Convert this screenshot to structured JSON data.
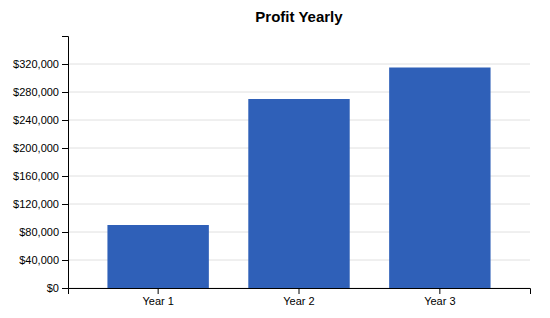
{
  "chart_data": {
    "type": "bar",
    "title": "Profit Yearly",
    "categories": [
      "Year 1",
      "Year 2",
      "Year 3"
    ],
    "values": [
      90000,
      270000,
      315000
    ],
    "color": "#2f60b8",
    "ylim": [
      0,
      360000
    ],
    "yticks": [
      {
        "value": 0,
        "label": "$0"
      },
      {
        "value": 40000,
        "label": "$40,000"
      },
      {
        "value": 80000,
        "label": "$80,000"
      },
      {
        "value": 120000,
        "label": "$120,000"
      },
      {
        "value": 160000,
        "label": "$160,000"
      },
      {
        "value": 200000,
        "label": "$200,000"
      },
      {
        "value": 240000,
        "label": "$240,000"
      },
      {
        "value": 280000,
        "label": "$280,000"
      },
      {
        "value": 320000,
        "label": "$320,000"
      }
    ],
    "grid": true
  }
}
